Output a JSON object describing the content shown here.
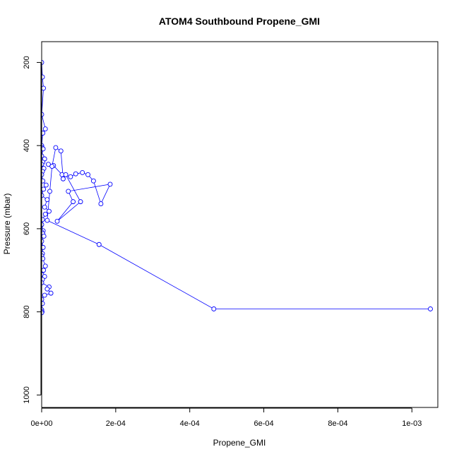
{
  "chart_data": {
    "type": "scatter",
    "title": "ATOM4 Southbound Propene_GMI",
    "xlabel": "Propene_GMI",
    "ylabel": "Pressure (mbar)",
    "xlim": [
      0,
      0.00107
    ],
    "ylim": [
      1030,
      150
    ],
    "y_reversed": true,
    "x_ticks": [
      0,
      0.0002,
      0.0004,
      0.0006,
      0.0008,
      0.001
    ],
    "x_tick_labels": [
      "0e+00",
      "2e-04",
      "4e-04",
      "6e-04",
      "8e-04",
      "1e-03"
    ],
    "y_ticks": [
      200,
      400,
      600,
      800,
      1000
    ],
    "y_tick_labels": [
      "200",
      "400",
      "600",
      "800",
      "1000"
    ],
    "series_color": "#0000ff",
    "marker": "open-circle",
    "grid": false,
    "series": [
      {
        "x": [
          0.0,
          2e-06,
          5e-06,
          0.0,
          1e-05,
          3e-06,
          0.0,
          1e-06,
          4e-06,
          0.0,
          8e-06,
          3e-06,
          0.0,
          6e-06,
          2e-06,
          0.0,
          3e-06,
          1.2e-05,
          5e-06,
          0.0,
          1.5e-05,
          8e-06,
          2e-05,
          1e-05,
          2e-06,
          0.0,
          4e-06
        ],
        "y": [
          200,
          235,
          262,
          325,
          360,
          370,
          400,
          405,
          408,
          425,
          432,
          440,
          445,
          455,
          462,
          470,
          485,
          495,
          505,
          520,
          530,
          548,
          558,
          565,
          578,
          590,
          605
        ]
      },
      {
        "x": [
          0.0,
          3e-06,
          6e-06,
          0.0,
          4e-06,
          2e-06,
          0.0,
          3e-06,
          1e-05,
          5e-06,
          0.0,
          8e-06,
          2e-06,
          0.0,
          2e-05,
          1.5e-05,
          2.5e-05,
          8e-06,
          0.0,
          2e-06,
          0.0,
          1e-06,
          0.0
        ],
        "y": [
          608,
          612,
          618,
          630,
          645,
          660,
          665,
          672,
          690,
          700,
          710,
          715,
          722,
          730,
          740,
          745,
          755,
          760,
          770,
          780,
          795,
          800,
          802
        ]
      },
      {
        "x": [
          1.8e-05,
          3.2e-05,
          5.5e-05,
          7.8e-05,
          9.2e-05,
          0.00011,
          0.000125,
          0.00014,
          0.00016,
          0.000185,
          7.2e-05,
          8.5e-05,
          4.2e-05,
          0.000105,
          6.5e-05,
          5.8e-05,
          5.2e-05,
          3.8e-05,
          2.8e-05,
          2.2e-05,
          1.5e-05,
          0.000155,
          0.000465,
          0.00105
        ],
        "y": [
          445,
          448,
          470,
          475,
          468,
          465,
          470,
          485,
          540,
          493,
          510,
          535,
          582,
          535,
          470,
          480,
          413,
          405,
          450,
          510,
          580,
          638,
          793,
          793
        ]
      }
    ]
  }
}
